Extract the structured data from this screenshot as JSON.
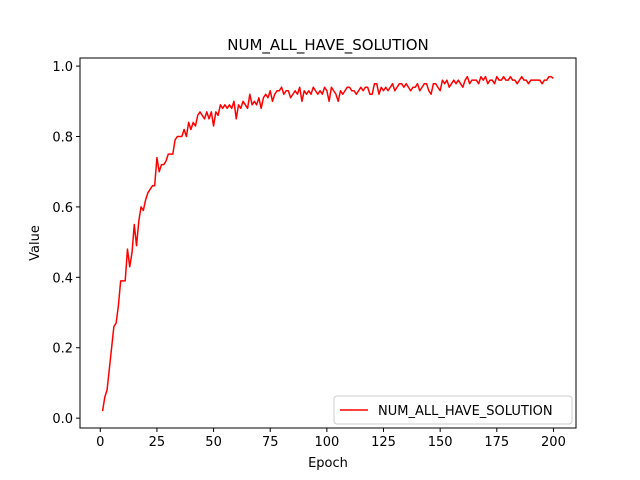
{
  "chart_data": {
    "type": "line",
    "title": "NUM_ALL_HAVE_SOLUTION",
    "x_label": "Epoch",
    "y_label": "Value",
    "x": [
      1,
      2,
      3,
      4,
      5,
      6,
      7,
      8,
      9,
      10,
      11,
      12,
      13,
      14,
      15,
      16,
      17,
      18,
      19,
      20,
      21,
      22,
      23,
      24,
      25,
      26,
      27,
      28,
      29,
      30,
      31,
      32,
      33,
      34,
      35,
      36,
      37,
      38,
      39,
      40,
      41,
      42,
      43,
      44,
      45,
      46,
      47,
      48,
      49,
      50,
      51,
      52,
      53,
      54,
      55,
      56,
      57,
      58,
      59,
      60,
      61,
      62,
      63,
      64,
      65,
      66,
      67,
      68,
      69,
      70,
      71,
      72,
      73,
      74,
      75,
      76,
      77,
      78,
      79,
      80,
      81,
      82,
      83,
      84,
      85,
      86,
      87,
      88,
      89,
      90,
      91,
      92,
      93,
      94,
      95,
      96,
      97,
      98,
      99,
      100,
      101,
      102,
      103,
      104,
      105,
      106,
      107,
      108,
      109,
      110,
      111,
      112,
      113,
      114,
      115,
      116,
      117,
      118,
      119,
      120,
      121,
      122,
      123,
      124,
      125,
      126,
      127,
      128,
      129,
      130,
      131,
      132,
      133,
      134,
      135,
      136,
      137,
      138,
      139,
      140,
      141,
      142,
      143,
      144,
      145,
      146,
      147,
      148,
      149,
      150,
      151,
      152,
      153,
      154,
      155,
      156,
      157,
      158,
      159,
      160,
      161,
      162,
      163,
      164,
      165,
      166,
      167,
      168,
      169,
      170,
      171,
      172,
      173,
      174,
      175,
      176,
      177,
      178,
      179,
      180,
      181,
      182,
      183,
      184,
      185,
      186,
      187,
      188,
      189,
      190,
      191,
      192,
      193,
      194,
      195,
      196,
      197,
      198,
      199,
      200
    ],
    "series": [
      {
        "name": "NUM_ALL_HAVE_SOLUTION",
        "color": "#ff0000",
        "values": [
          0.02,
          0.06,
          0.08,
          0.14,
          0.2,
          0.26,
          0.27,
          0.32,
          0.39,
          0.39,
          0.39,
          0.48,
          0.43,
          0.47,
          0.55,
          0.49,
          0.56,
          0.6,
          0.59,
          0.62,
          0.64,
          0.65,
          0.66,
          0.66,
          0.74,
          0.7,
          0.72,
          0.72,
          0.73,
          0.75,
          0.75,
          0.75,
          0.79,
          0.8,
          0.8,
          0.8,
          0.82,
          0.8,
          0.84,
          0.82,
          0.84,
          0.83,
          0.86,
          0.87,
          0.86,
          0.85,
          0.87,
          0.85,
          0.87,
          0.83,
          0.87,
          0.86,
          0.89,
          0.88,
          0.89,
          0.88,
          0.89,
          0.88,
          0.9,
          0.85,
          0.89,
          0.88,
          0.9,
          0.89,
          0.88,
          0.92,
          0.89,
          0.9,
          0.89,
          0.91,
          0.88,
          0.91,
          0.92,
          0.91,
          0.93,
          0.9,
          0.92,
          0.93,
          0.93,
          0.94,
          0.92,
          0.93,
          0.93,
          0.91,
          0.92,
          0.93,
          0.92,
          0.94,
          0.9,
          0.93,
          0.92,
          0.93,
          0.92,
          0.94,
          0.93,
          0.92,
          0.93,
          0.92,
          0.94,
          0.93,
          0.9,
          0.94,
          0.93,
          0.92,
          0.9,
          0.93,
          0.92,
          0.93,
          0.94,
          0.94,
          0.93,
          0.93,
          0.92,
          0.93,
          0.94,
          0.93,
          0.94,
          0.94,
          0.92,
          0.92,
          0.95,
          0.95,
          0.92,
          0.94,
          0.93,
          0.94,
          0.93,
          0.94,
          0.95,
          0.93,
          0.94,
          0.95,
          0.95,
          0.94,
          0.95,
          0.94,
          0.93,
          0.94,
          0.94,
          0.95,
          0.93,
          0.94,
          0.95,
          0.95,
          0.93,
          0.92,
          0.95,
          0.95,
          0.94,
          0.93,
          0.96,
          0.95,
          0.96,
          0.94,
          0.95,
          0.96,
          0.95,
          0.96,
          0.95,
          0.94,
          0.96,
          0.97,
          0.95,
          0.96,
          0.96,
          0.96,
          0.95,
          0.97,
          0.96,
          0.97,
          0.95,
          0.96,
          0.96,
          0.95,
          0.97,
          0.96,
          0.96,
          0.97,
          0.96,
          0.96,
          0.97,
          0.96,
          0.96,
          0.95,
          0.96,
          0.97,
          0.96,
          0.96,
          0.95,
          0.96,
          0.96,
          0.96,
          0.96,
          0.96,
          0.95,
          0.96,
          0.96,
          0.97,
          0.97,
          0.965
        ]
      }
    ],
    "xlim": [
      -8.95,
      209.95
    ],
    "xticks": [
      0,
      25,
      50,
      75,
      100,
      125,
      150,
      175,
      200
    ],
    "ylim": [
      -0.028,
      1.023
    ],
    "yticks": [
      {
        "value": 0,
        "label": "0.0"
      },
      {
        "value": 0.2,
        "label": "0.2"
      },
      {
        "value": 0.4,
        "label": "0.4"
      },
      {
        "value": 0.6,
        "label": "0.6"
      },
      {
        "value": 0.8,
        "label": "0.8"
      },
      {
        "value": 1,
        "label": "1.0"
      }
    ],
    "grid": false,
    "legend": "lower right"
  }
}
